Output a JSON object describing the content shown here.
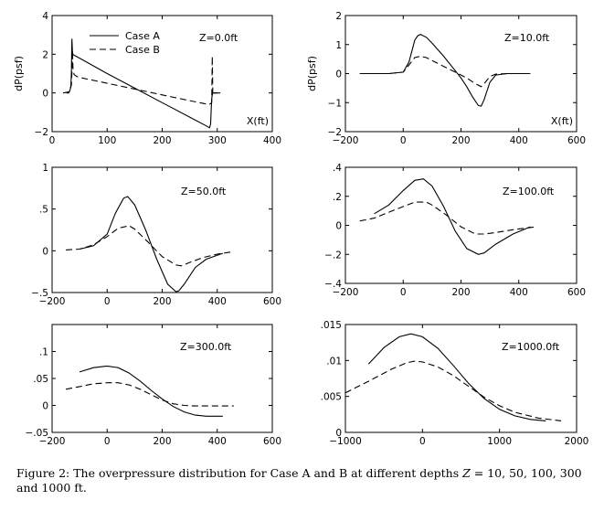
{
  "caption": {
    "prefix": "Figure 2: The overpressure distribution for Case A and B at different depths ",
    "z_symbol": "Z",
    "suffix": " = 10, 50, 100, 300 and 1000 ft."
  },
  "legend": {
    "case_a": "Case A",
    "case_b": "Case B"
  },
  "chart_data": [
    {
      "type": "line",
      "annotation": "Z=0.0ft",
      "ylabel": "dP(psf)",
      "xlabel": "X(ft)",
      "xlim": [
        0,
        400
      ],
      "ylim": [
        -2,
        4
      ],
      "xticks": [
        0,
        100,
        200,
        300,
        400
      ],
      "yticks": [
        -2,
        0,
        2,
        4
      ],
      "legend": "top-left",
      "series": [
        {
          "name": "Case A",
          "style": "solid",
          "x": [
            26,
            30,
            32,
            34,
            35,
            36,
            37,
            38,
            40,
            50,
            100,
            150,
            200,
            250,
            280,
            286,
            288,
            289,
            290,
            291,
            292,
            294,
            300
          ],
          "y": [
            0,
            0,
            0.1,
            0.3,
            1.0,
            2.8,
            2.1,
            1.98,
            1.95,
            1.8,
            1.0,
            0.25,
            -0.5,
            -1.25,
            -1.7,
            -1.8,
            -1.6,
            -0.9,
            -0.3,
            -0.1,
            0,
            0,
            0
          ]
        },
        {
          "name": "Case B",
          "style": "dashed",
          "x": [
            20,
            30,
            35,
            36,
            37,
            38,
            40,
            45,
            50,
            100,
            150,
            200,
            250,
            285,
            288,
            290,
            291,
            292,
            293,
            295,
            298,
            310
          ],
          "y": [
            0,
            0.05,
            0.4,
            1.0,
            2.2,
            1.2,
            0.95,
            0.85,
            0.8,
            0.5,
            0.2,
            -0.1,
            -0.4,
            -0.6,
            -0.55,
            -0.5,
            1.9,
            -0.1,
            0,
            0,
            0,
            0
          ]
        }
      ]
    },
    {
      "type": "line",
      "annotation": "Z=10.0ft",
      "ylabel": "dP(psf)",
      "xlabel": "X(ft)",
      "xlim": [
        -200,
        600
      ],
      "ylim": [
        -2,
        2
      ],
      "xticks": [
        -200,
        0,
        200,
        400,
        600
      ],
      "yticks": [
        -2,
        -1,
        0,
        1,
        2
      ],
      "series": [
        {
          "name": "Case A",
          "style": "solid",
          "x": [
            -150,
            -50,
            0,
            20,
            40,
            50,
            60,
            80,
            100,
            140,
            180,
            200,
            220,
            240,
            260,
            270,
            280,
            300,
            320,
            360,
            440
          ],
          "y": [
            0,
            0,
            0.05,
            0.4,
            1.15,
            1.3,
            1.35,
            1.25,
            1.05,
            0.6,
            0.1,
            -0.15,
            -0.45,
            -0.8,
            -1.1,
            -1.12,
            -0.9,
            -0.3,
            -0.05,
            0,
            0
          ]
        },
        {
          "name": "Case B",
          "style": "dashed",
          "x": [
            -150,
            -50,
            0,
            20,
            40,
            60,
            80,
            100,
            140,
            180,
            200,
            220,
            250,
            270,
            280,
            300,
            320,
            360,
            440
          ],
          "y": [
            0,
            0,
            0.05,
            0.3,
            0.55,
            0.6,
            0.55,
            0.45,
            0.25,
            0.05,
            -0.05,
            -0.15,
            -0.35,
            -0.45,
            -0.35,
            -0.1,
            -0.02,
            0,
            0
          ]
        }
      ]
    },
    {
      "type": "line",
      "annotation": "Z=50.0ft",
      "xlim": [
        -200,
        600
      ],
      "ylim": [
        -0.5,
        1
      ],
      "xticks": [
        -200,
        0,
        200,
        400,
        600
      ],
      "yticks": [
        -0.5,
        0,
        0.5,
        1
      ],
      "series": [
        {
          "name": "Case A",
          "style": "solid",
          "x": [
            -100,
            -50,
            0,
            30,
            60,
            75,
            100,
            140,
            180,
            220,
            250,
            260,
            280,
            320,
            360,
            420
          ],
          "y": [
            0.02,
            0.06,
            0.2,
            0.45,
            0.63,
            0.65,
            0.55,
            0.25,
            -0.1,
            -0.4,
            -0.49,
            -0.48,
            -0.4,
            -0.2,
            -0.1,
            -0.03
          ]
        },
        {
          "name": "Case B",
          "style": "dashed",
          "x": [
            -150,
            -100,
            -50,
            0,
            40,
            80,
            100,
            150,
            200,
            250,
            270,
            300,
            350,
            400,
            460
          ],
          "y": [
            0.01,
            0.02,
            0.07,
            0.17,
            0.27,
            0.3,
            0.26,
            0.1,
            -0.07,
            -0.17,
            -0.18,
            -0.14,
            -0.08,
            -0.04,
            -0.01
          ]
        }
      ]
    },
    {
      "type": "line",
      "annotation": "Z=100.0ft",
      "xlim": [
        -200,
        600
      ],
      "ylim": [
        -0.4,
        0.4
      ],
      "xticks": [
        -200,
        0,
        200,
        400,
        600
      ],
      "yticks": [
        -0.4,
        -0.2,
        0,
        0.2,
        0.4
      ],
      "series": [
        {
          "name": "Case A",
          "style": "solid",
          "x": [
            -100,
            -50,
            0,
            40,
            70,
            100,
            140,
            180,
            220,
            260,
            280,
            320,
            380,
            440
          ],
          "y": [
            0.08,
            0.14,
            0.24,
            0.31,
            0.32,
            0.27,
            0.13,
            -0.04,
            -0.16,
            -0.2,
            -0.19,
            -0.13,
            -0.06,
            -0.01
          ]
        },
        {
          "name": "Case B",
          "style": "dashed",
          "x": [
            -150,
            -100,
            -50,
            0,
            40,
            80,
            100,
            150,
            200,
            250,
            280,
            320,
            380,
            460
          ],
          "y": [
            0.03,
            0.05,
            0.09,
            0.13,
            0.16,
            0.16,
            0.14,
            0.07,
            -0.01,
            -0.06,
            -0.06,
            -0.05,
            -0.03,
            -0.01
          ]
        }
      ]
    },
    {
      "type": "line",
      "annotation": "Z=300.0ft",
      "xlim": [
        -200,
        600
      ],
      "ylim": [
        -0.05,
        0.15
      ],
      "xticks": [
        -200,
        0,
        200,
        400,
        600
      ],
      "yticks": [
        -0.05,
        0,
        0.05,
        0.1
      ],
      "series": [
        {
          "name": "Case A",
          "style": "solid",
          "x": [
            -100,
            -50,
            0,
            40,
            80,
            120,
            160,
            200,
            240,
            280,
            320,
            360,
            420
          ],
          "y": [
            0.062,
            0.07,
            0.073,
            0.07,
            0.06,
            0.045,
            0.028,
            0.012,
            -0.002,
            -0.012,
            -0.018,
            -0.02,
            -0.02
          ]
        },
        {
          "name": "Case B",
          "style": "dashed",
          "x": [
            -150,
            -100,
            -50,
            0,
            40,
            80,
            120,
            160,
            200,
            240,
            280,
            320,
            380,
            460
          ],
          "y": [
            0.03,
            0.035,
            0.04,
            0.042,
            0.042,
            0.038,
            0.03,
            0.02,
            0.01,
            0.003,
            0,
            -0.001,
            -0.001,
            -0.001
          ]
        }
      ]
    },
    {
      "type": "line",
      "annotation": "Z=1000.0ft",
      "xlim": [
        -1000,
        2000
      ],
      "ylim": [
        0,
        0.015
      ],
      "xticks": [
        -1000,
        0,
        1000,
        2000
      ],
      "yticks": [
        0,
        0.005,
        0.01,
        0.015
      ],
      "series": [
        {
          "name": "Case A",
          "style": "solid",
          "x": [
            -700,
            -500,
            -300,
            -150,
            0,
            200,
            400,
            600,
            800,
            1000,
            1200,
            1400,
            1600
          ],
          "y": [
            0.0095,
            0.0118,
            0.0133,
            0.0137,
            0.0133,
            0.0117,
            0.0093,
            0.0068,
            0.0047,
            0.0032,
            0.0023,
            0.0018,
            0.0016
          ]
        },
        {
          "name": "Case B",
          "style": "dashed",
          "x": [
            -1000,
            -700,
            -400,
            -200,
            -100,
            0,
            200,
            400,
            600,
            800,
            1000,
            1200,
            1500,
            1800
          ],
          "y": [
            0.0055,
            0.0071,
            0.0088,
            0.0097,
            0.0099,
            0.0098,
            0.0091,
            0.0079,
            0.0064,
            0.0049,
            0.0037,
            0.0028,
            0.002,
            0.0016
          ]
        }
      ]
    }
  ]
}
